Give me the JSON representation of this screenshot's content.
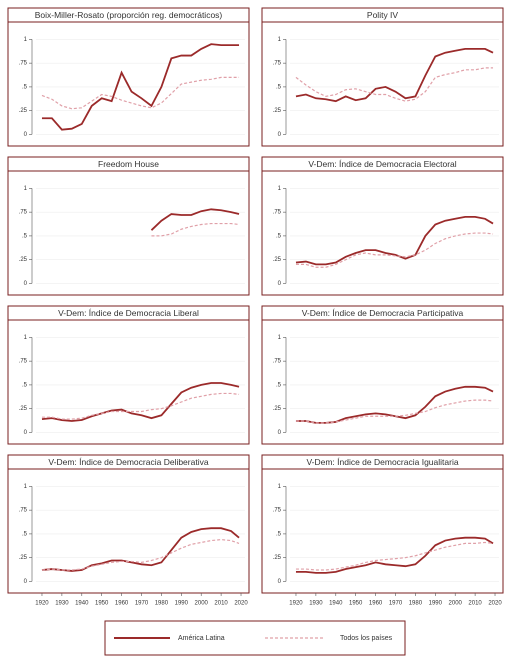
{
  "chart_data": [
    {
      "type": "line",
      "title": "Boix-Miller-Rosato (proporción reg. democráticos)",
      "x": [
        1920,
        1925,
        1930,
        1935,
        1940,
        1945,
        1950,
        1955,
        1960,
        1965,
        1970,
        1975,
        1980,
        1985,
        1990,
        1995,
        2000,
        2005,
        2010,
        2015,
        2019
      ],
      "series": [
        {
          "name": "América Latina",
          "color": "#9b2a2a",
          "values": [
            0.17,
            0.17,
            0.05,
            0.06,
            0.11,
            0.3,
            0.38,
            0.35,
            0.65,
            0.45,
            0.38,
            0.3,
            0.5,
            0.8,
            0.83,
            0.83,
            0.9,
            0.95,
            0.94,
            0.94,
            0.94
          ]
        },
        {
          "name": "Todos los países",
          "color": "#e0a0a8",
          "values": [
            0.41,
            0.37,
            0.3,
            0.27,
            0.28,
            0.35,
            0.42,
            0.4,
            0.36,
            0.33,
            0.3,
            0.28,
            0.33,
            0.43,
            0.53,
            0.55,
            0.57,
            0.58,
            0.6,
            0.6,
            0.6
          ]
        }
      ],
      "ylim": [
        -0.08,
        1.12
      ],
      "yticks": [
        0,
        {
          "value": 0.25,
          "label": ".25"
        },
        {
          "value": 0.5,
          "label": ".5"
        },
        {
          "value": 0.75,
          "label": ".75"
        },
        1
      ],
      "grid": true
    },
    {
      "type": "line",
      "title": "Polity IV",
      "x": [
        1920,
        1925,
        1930,
        1935,
        1940,
        1945,
        1950,
        1955,
        1960,
        1965,
        1970,
        1975,
        1980,
        1985,
        1990,
        1995,
        2000,
        2005,
        2010,
        2015,
        2019
      ],
      "series": [
        {
          "name": "América Latina",
          "color": "#9b2a2a",
          "values": [
            0.4,
            0.42,
            0.38,
            0.37,
            0.35,
            0.4,
            0.36,
            0.38,
            0.48,
            0.5,
            0.45,
            0.38,
            0.4,
            0.62,
            0.82,
            0.86,
            0.88,
            0.9,
            0.9,
            0.9,
            0.86
          ]
        },
        {
          "name": "Todos los países",
          "color": "#e0a0a8",
          "values": [
            0.6,
            0.52,
            0.45,
            0.4,
            0.42,
            0.47,
            0.48,
            0.45,
            0.42,
            0.42,
            0.38,
            0.35,
            0.37,
            0.45,
            0.6,
            0.63,
            0.65,
            0.68,
            0.68,
            0.7,
            0.7
          ]
        }
      ],
      "ylim": [
        -0.08,
        1.12
      ],
      "yticks": [
        0,
        {
          "value": 0.25,
          "label": ".25"
        },
        {
          "value": 0.5,
          "label": ".5"
        },
        {
          "value": 0.75,
          "label": ".75"
        },
        1
      ],
      "grid": true
    },
    {
      "type": "line",
      "title": "Freedom House",
      "x": [
        1920,
        1925,
        1930,
        1935,
        1940,
        1945,
        1950,
        1955,
        1960,
        1965,
        1970,
        1975,
        1980,
        1985,
        1990,
        1995,
        2000,
        2005,
        2010,
        2015,
        2019
      ],
      "series": [
        {
          "name": "América Latina",
          "color": "#9b2a2a",
          "values": [
            null,
            null,
            null,
            null,
            null,
            null,
            null,
            null,
            null,
            null,
            null,
            0.56,
            0.66,
            0.73,
            0.72,
            0.72,
            0.76,
            0.78,
            0.77,
            0.75,
            0.73
          ]
        },
        {
          "name": "Todos los países",
          "color": "#e0a0a8",
          "values": [
            null,
            null,
            null,
            null,
            null,
            null,
            null,
            null,
            null,
            null,
            null,
            0.5,
            0.5,
            0.52,
            0.57,
            0.6,
            0.62,
            0.63,
            0.63,
            0.63,
            0.62
          ]
        }
      ],
      "ylim": [
        -0.08,
        1.12
      ],
      "yticks": [
        0,
        {
          "value": 0.25,
          "label": ".25"
        },
        {
          "value": 0.5,
          "label": ".5"
        },
        {
          "value": 0.75,
          "label": ".75"
        },
        1
      ],
      "grid": true
    },
    {
      "type": "line",
      "title": "V-Dem: Índice de Democracia Electoral",
      "x": [
        1920,
        1925,
        1930,
        1935,
        1940,
        1945,
        1950,
        1955,
        1960,
        1965,
        1970,
        1975,
        1980,
        1985,
        1990,
        1995,
        2000,
        2005,
        2010,
        2015,
        2019
      ],
      "series": [
        {
          "name": "América Latina",
          "color": "#9b2a2a",
          "values": [
            0.22,
            0.23,
            0.2,
            0.2,
            0.22,
            0.28,
            0.32,
            0.35,
            0.35,
            0.32,
            0.3,
            0.26,
            0.3,
            0.5,
            0.62,
            0.66,
            0.68,
            0.7,
            0.7,
            0.68,
            0.63
          ]
        },
        {
          "name": "Todos los países",
          "color": "#e0a0a8",
          "values": [
            0.2,
            0.2,
            0.17,
            0.17,
            0.2,
            0.25,
            0.3,
            0.32,
            0.3,
            0.3,
            0.29,
            0.28,
            0.3,
            0.35,
            0.42,
            0.47,
            0.5,
            0.52,
            0.53,
            0.53,
            0.52
          ]
        }
      ],
      "ylim": [
        -0.08,
        1.12
      ],
      "yticks": [
        0,
        {
          "value": 0.25,
          "label": ".25"
        },
        {
          "value": 0.5,
          "label": ".5"
        },
        {
          "value": 0.75,
          "label": ".75"
        },
        1
      ],
      "grid": true
    },
    {
      "type": "line",
      "title": "V-Dem: Índice de Democracia Liberal",
      "x": [
        1920,
        1925,
        1930,
        1935,
        1940,
        1945,
        1950,
        1955,
        1960,
        1965,
        1970,
        1975,
        1980,
        1985,
        1990,
        1995,
        2000,
        2005,
        2010,
        2015,
        2019
      ],
      "series": [
        {
          "name": "América Latina",
          "color": "#9b2a2a",
          "values": [
            0.14,
            0.15,
            0.13,
            0.12,
            0.13,
            0.17,
            0.2,
            0.23,
            0.24,
            0.2,
            0.18,
            0.15,
            0.18,
            0.3,
            0.42,
            0.47,
            0.5,
            0.52,
            0.52,
            0.5,
            0.48
          ]
        },
        {
          "name": "Todos los países",
          "color": "#e0a0a8",
          "values": [
            0.16,
            0.16,
            0.14,
            0.14,
            0.15,
            0.18,
            0.2,
            0.22,
            0.22,
            0.22,
            0.22,
            0.24,
            0.25,
            0.28,
            0.32,
            0.36,
            0.38,
            0.4,
            0.41,
            0.41,
            0.4
          ]
        }
      ],
      "ylim": [
        -0.08,
        1.12
      ],
      "yticks": [
        0,
        {
          "value": 0.25,
          "label": ".25"
        },
        {
          "value": 0.5,
          "label": ".5"
        },
        {
          "value": 0.75,
          "label": ".75"
        },
        1
      ],
      "grid": true
    },
    {
      "type": "line",
      "title": "V-Dem: Índice de Democracia Participativa",
      "x": [
        1920,
        1925,
        1930,
        1935,
        1940,
        1945,
        1950,
        1955,
        1960,
        1965,
        1970,
        1975,
        1980,
        1985,
        1990,
        1995,
        2000,
        2005,
        2010,
        2015,
        2019
      ],
      "series": [
        {
          "name": "América Latina",
          "color": "#9b2a2a",
          "values": [
            0.12,
            0.12,
            0.1,
            0.1,
            0.11,
            0.15,
            0.17,
            0.19,
            0.2,
            0.19,
            0.17,
            0.15,
            0.18,
            0.27,
            0.38,
            0.43,
            0.46,
            0.48,
            0.48,
            0.47,
            0.43
          ]
        },
        {
          "name": "Todos los países",
          "color": "#e0a0a8",
          "values": [
            0.12,
            0.12,
            0.1,
            0.1,
            0.11,
            0.13,
            0.15,
            0.17,
            0.17,
            0.17,
            0.17,
            0.18,
            0.2,
            0.22,
            0.26,
            0.29,
            0.31,
            0.33,
            0.34,
            0.34,
            0.33
          ]
        }
      ],
      "ylim": [
        -0.08,
        1.12
      ],
      "yticks": [
        0,
        {
          "value": 0.25,
          "label": ".25"
        },
        {
          "value": 0.5,
          "label": ".5"
        },
        {
          "value": 0.75,
          "label": ".75"
        },
        1
      ],
      "grid": true
    },
    {
      "type": "line",
      "title": "V-Dem: Índice de Democracia Deliberativa",
      "x": [
        1920,
        1925,
        1930,
        1935,
        1940,
        1945,
        1950,
        1955,
        1960,
        1965,
        1970,
        1975,
        1980,
        1985,
        1990,
        1995,
        2000,
        2005,
        2010,
        2015,
        2019
      ],
      "series": [
        {
          "name": "América Latina",
          "color": "#9b2a2a",
          "values": [
            0.12,
            0.13,
            0.12,
            0.11,
            0.12,
            0.17,
            0.19,
            0.22,
            0.22,
            0.2,
            0.18,
            0.17,
            0.2,
            0.33,
            0.46,
            0.52,
            0.55,
            0.56,
            0.56,
            0.53,
            0.46
          ]
        },
        {
          "name": "Todos los países",
          "color": "#e0a0a8",
          "values": [
            0.12,
            0.13,
            0.12,
            0.12,
            0.13,
            0.16,
            0.18,
            0.2,
            0.21,
            0.21,
            0.2,
            0.22,
            0.25,
            0.3,
            0.35,
            0.39,
            0.41,
            0.43,
            0.44,
            0.43,
            0.4
          ]
        }
      ],
      "xlim": [
        1917,
        2022
      ],
      "xticks": [
        1920,
        1930,
        1940,
        1950,
        1960,
        1970,
        1980,
        1990,
        2000,
        2010,
        2020
      ],
      "ylim": [
        -0.08,
        1.12
      ],
      "yticks": [
        0,
        {
          "value": 0.25,
          "label": ".25"
        },
        {
          "value": 0.5,
          "label": ".5"
        },
        {
          "value": 0.75,
          "label": ".75"
        },
        1
      ],
      "grid": true
    },
    {
      "type": "line",
      "title": "V-Dem: Índice de Democracia Igualitaria",
      "x": [
        1920,
        1925,
        1930,
        1935,
        1940,
        1945,
        1950,
        1955,
        1960,
        1965,
        1970,
        1975,
        1980,
        1985,
        1990,
        1995,
        2000,
        2005,
        2010,
        2015,
        2019
      ],
      "series": [
        {
          "name": "América Latina",
          "color": "#9b2a2a",
          "values": [
            0.1,
            0.1,
            0.09,
            0.09,
            0.1,
            0.13,
            0.15,
            0.17,
            0.2,
            0.18,
            0.17,
            0.16,
            0.18,
            0.27,
            0.38,
            0.43,
            0.45,
            0.46,
            0.46,
            0.45,
            0.4
          ]
        },
        {
          "name": "Todos los países",
          "color": "#e0a0a8",
          "values": [
            0.13,
            0.13,
            0.12,
            0.12,
            0.13,
            0.15,
            0.17,
            0.2,
            0.22,
            0.23,
            0.24,
            0.25,
            0.27,
            0.3,
            0.33,
            0.36,
            0.38,
            0.4,
            0.4,
            0.41,
            0.4
          ]
        }
      ],
      "xlim": [
        1917,
        2022
      ],
      "xticks": [
        1920,
        1930,
        1940,
        1950,
        1960,
        1970,
        1980,
        1990,
        2000,
        2010,
        2020
      ],
      "ylim": [
        -0.08,
        1.12
      ],
      "yticks": [
        0,
        {
          "value": 0.25,
          "label": ".25"
        },
        {
          "value": 0.5,
          "label": ".5"
        },
        {
          "value": 0.75,
          "label": ".75"
        },
        1
      ],
      "grid": true
    }
  ]
}
